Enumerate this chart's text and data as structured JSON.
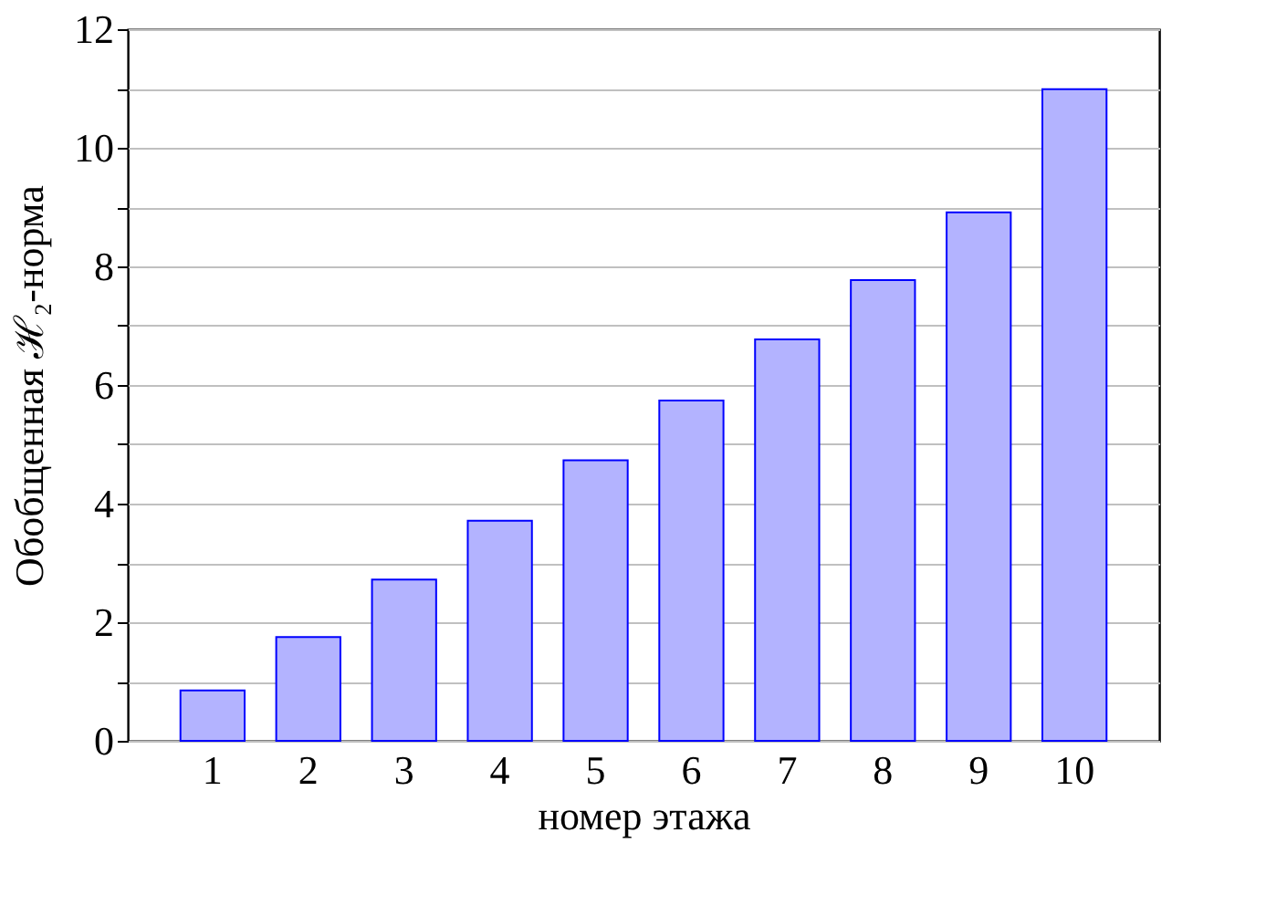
{
  "chart_data": {
    "type": "bar",
    "xlabel": "номер этажа",
    "ylabel": "Обобщенная ℋ₂-норма",
    "categories": [
      "1",
      "2",
      "3",
      "4",
      "5",
      "6",
      "7",
      "8",
      "9",
      "10"
    ],
    "values": [
      0.85,
      1.75,
      2.72,
      3.71,
      4.73,
      5.74,
      6.77,
      7.77,
      8.91,
      10.99
    ],
    "color": "#b3b3ff",
    "ylim": [
      0,
      12
    ],
    "yticks": [
      0,
      {
        "value": 1,
        "label": null
      },
      2,
      {
        "value": 3,
        "label": null
      },
      4,
      {
        "value": 5,
        "label": null
      },
      6,
      {
        "value": 7,
        "label": null
      },
      8,
      {
        "value": 9,
        "label": null
      },
      10,
      {
        "value": 11,
        "label": null
      },
      12
    ],
    "grid": "y"
  }
}
